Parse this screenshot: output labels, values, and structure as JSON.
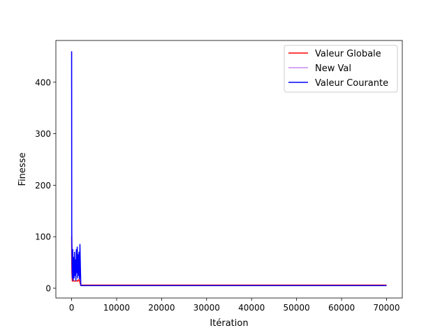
{
  "chart_data": {
    "type": "line",
    "title": "",
    "xlabel": "Itération",
    "ylabel": "Finesse",
    "xlim": [
      -3500,
      73500
    ],
    "ylim": [
      -19,
      481
    ],
    "x_ticks": [
      0,
      10000,
      20000,
      30000,
      40000,
      50000,
      60000,
      70000
    ],
    "x_tick_labels": [
      "0",
      "10000",
      "20000",
      "30000",
      "40000",
      "50000",
      "60000",
      "70000"
    ],
    "y_ticks": [
      0,
      100,
      200,
      300,
      400
    ],
    "y_tick_labels": [
      "0",
      "100",
      "200",
      "300",
      "400"
    ],
    "grid": false,
    "legend_position": "top-right",
    "series": [
      {
        "name": "Valeur Globale",
        "color": "#ff0000",
        "points": [
          [
            0,
            100
          ],
          [
            20,
            60
          ],
          [
            60,
            30
          ],
          [
            150,
            14
          ],
          [
            1400,
            14
          ],
          [
            1450,
            16
          ],
          [
            1700,
            16
          ],
          [
            1800,
            12
          ],
          [
            2000,
            6
          ],
          [
            70000,
            6
          ]
        ]
      },
      {
        "name": "New Val",
        "color": "#c58cf0",
        "points": [
          [
            0,
            460
          ],
          [
            30,
            120
          ],
          [
            120,
            60
          ],
          [
            300,
            40
          ],
          [
            600,
            30
          ],
          [
            900,
            45
          ],
          [
            1200,
            35
          ],
          [
            1500,
            50
          ],
          [
            1800,
            40
          ],
          [
            2000,
            8
          ],
          [
            2100,
            5
          ],
          [
            70000,
            5
          ]
        ]
      },
      {
        "name": "Valeur Courante",
        "color": "#0000ff",
        "points": [
          [
            0,
            460
          ],
          [
            30,
            100
          ],
          [
            80,
            65
          ],
          [
            150,
            20
          ],
          [
            250,
            75
          ],
          [
            350,
            15
          ],
          [
            450,
            60
          ],
          [
            550,
            20
          ],
          [
            650,
            70
          ],
          [
            750,
            25
          ],
          [
            850,
            55
          ],
          [
            950,
            15
          ],
          [
            1050,
            75
          ],
          [
            1150,
            30
          ],
          [
            1250,
            80
          ],
          [
            1350,
            20
          ],
          [
            1450,
            65
          ],
          [
            1550,
            25
          ],
          [
            1650,
            70
          ],
          [
            1750,
            18
          ],
          [
            1850,
            85
          ],
          [
            1950,
            40
          ],
          [
            2050,
            5
          ],
          [
            70000,
            5
          ]
        ]
      }
    ]
  }
}
